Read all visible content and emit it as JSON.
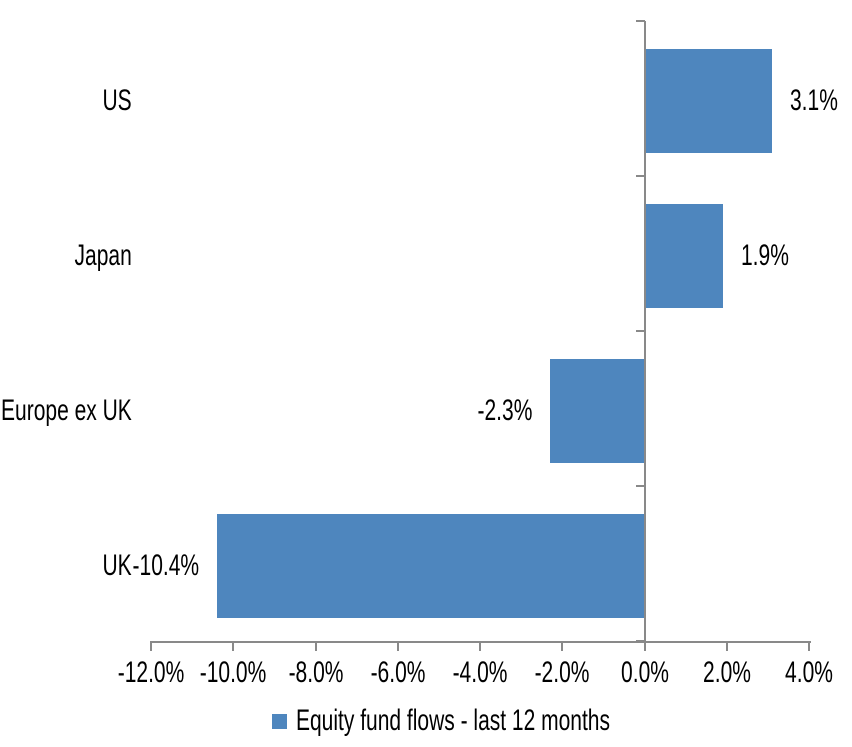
{
  "chart_data": {
    "type": "bar",
    "orientation": "horizontal",
    "categories": [
      "US",
      "Japan",
      "Europe ex UK",
      "UK"
    ],
    "values": [
      3.1,
      1.9,
      -2.3,
      -10.4
    ],
    "data_labels": [
      "3.1%",
      "1.9%",
      "-2.3%",
      "-10.4%"
    ],
    "series": [
      {
        "name": "Equity fund flows - last 12 months",
        "values": [
          3.1,
          1.9,
          -2.3,
          -10.4
        ]
      }
    ],
    "xlabel": "",
    "ylabel": "",
    "xlim": [
      -12,
      4
    ],
    "x_ticks": [
      -12,
      -10,
      -8,
      -6,
      -4,
      -2,
      0,
      2,
      4
    ],
    "x_tick_labels": [
      "-12.0%",
      "-10.0%",
      "-8.0%",
      "-6.0%",
      "-4.0%",
      "-2.0%",
      "0.0%",
      "2.0%",
      "4.0%"
    ],
    "grid": false,
    "legend_position": "bottom",
    "colors": {
      "bar": "#4E86BE",
      "axis": "#898989",
      "text": "#000000",
      "background": "#FFFFFF"
    }
  },
  "legend": {
    "label": "Equity fund flows - last 12 months"
  }
}
